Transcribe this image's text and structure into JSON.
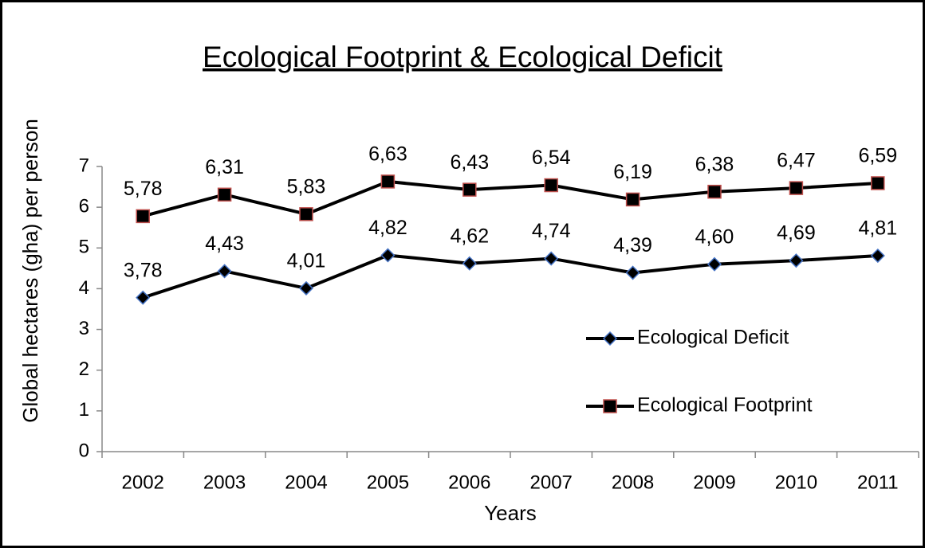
{
  "chart_data": {
    "type": "line",
    "title": "Ecological Footprint & Ecological Deficit",
    "x_label": "Years",
    "y_label": "Global hectares (gha) per person",
    "categories": [
      "2002",
      "2003",
      "2004",
      "2005",
      "2006",
      "2007",
      "2008",
      "2009",
      "2010",
      "2011"
    ],
    "series": [
      {
        "name": "Ecological Deficit",
        "color": "#000000",
        "marker": "diamond",
        "marker_edge": "#4472c4",
        "values": [
          3.78,
          4.43,
          4.01,
          4.82,
          4.62,
          4.74,
          4.39,
          4.6,
          4.69,
          4.81
        ],
        "value_labels": [
          "3,78",
          "4,43",
          "4,01",
          "4,82",
          "4,62",
          "4,74",
          "4,39",
          "4,60",
          "4,69",
          "4,81"
        ]
      },
      {
        "name": "Ecological Footprint",
        "color": "#000000",
        "marker": "square",
        "marker_edge": "#c0504d",
        "values": [
          5.78,
          6.31,
          5.83,
          6.63,
          6.43,
          6.54,
          6.19,
          6.38,
          6.47,
          6.59
        ],
        "value_labels": [
          "5,78",
          "6,31",
          "5,83",
          "6,63",
          "6,43",
          "6,54",
          "6,19",
          "6,38",
          "6,47",
          "6,59"
        ]
      }
    ],
    "ylim": [
      0,
      7
    ],
    "yticks": [
      0,
      1,
      2,
      3,
      4,
      5,
      6,
      7
    ],
    "grid": false,
    "legend": "right"
  }
}
